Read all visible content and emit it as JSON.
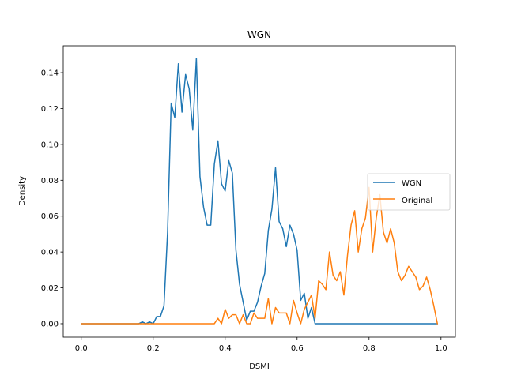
{
  "chart_data": {
    "type": "line",
    "title": "WGN",
    "xlabel": "DSMI",
    "ylabel": "Density",
    "xlim": [
      -0.05,
      1.04
    ],
    "ylim": [
      -0.0075,
      0.155
    ],
    "xticks": [
      0.0,
      0.2,
      0.4,
      0.6,
      0.8,
      1.0
    ],
    "xtick_labels": [
      "0.0",
      "0.2",
      "0.4",
      "0.6",
      "0.8",
      "1.0"
    ],
    "yticks": [
      0.0,
      0.02,
      0.04,
      0.06,
      0.08,
      0.1,
      0.12,
      0.14
    ],
    "ytick_labels": [
      "0.00",
      "0.02",
      "0.04",
      "0.06",
      "0.08",
      "0.10",
      "0.12",
      "0.14"
    ],
    "grid": false,
    "legend_position": "center-right",
    "series": [
      {
        "name": "WGN",
        "color": "#1f77b4",
        "x": [
          0.0,
          0.16,
          0.17,
          0.18,
          0.19,
          0.2,
          0.21,
          0.22,
          0.23,
          0.24,
          0.25,
          0.26,
          0.27,
          0.28,
          0.29,
          0.3,
          0.31,
          0.32,
          0.33,
          0.34,
          0.35,
          0.36,
          0.37,
          0.38,
          0.39,
          0.4,
          0.41,
          0.42,
          0.43,
          0.44,
          0.45,
          0.46,
          0.47,
          0.48,
          0.49,
          0.5,
          0.51,
          0.52,
          0.53,
          0.54,
          0.55,
          0.56,
          0.57,
          0.58,
          0.59,
          0.6,
          0.61,
          0.62,
          0.63,
          0.64,
          0.65,
          0.66,
          0.67,
          0.99
        ],
        "y": [
          0.0,
          0.0,
          0.001,
          0.0,
          0.001,
          0.0,
          0.004,
          0.004,
          0.01,
          0.051,
          0.123,
          0.115,
          0.145,
          0.118,
          0.139,
          0.131,
          0.108,
          0.148,
          0.082,
          0.065,
          0.055,
          0.055,
          0.089,
          0.102,
          0.078,
          0.074,
          0.091,
          0.084,
          0.041,
          0.022,
          0.012,
          0.002,
          0.007,
          0.007,
          0.012,
          0.021,
          0.028,
          0.052,
          0.064,
          0.087,
          0.057,
          0.053,
          0.043,
          0.055,
          0.05,
          0.041,
          0.013,
          0.017,
          0.003,
          0.009,
          0.0,
          0.0,
          0.0,
          0.0
        ]
      },
      {
        "name": "Original",
        "color": "#ff7f0e",
        "x": [
          0.0,
          0.37,
          0.38,
          0.39,
          0.4,
          0.41,
          0.42,
          0.43,
          0.44,
          0.45,
          0.46,
          0.47,
          0.48,
          0.49,
          0.5,
          0.51,
          0.52,
          0.53,
          0.54,
          0.55,
          0.56,
          0.57,
          0.58,
          0.59,
          0.6,
          0.61,
          0.62,
          0.63,
          0.64,
          0.65,
          0.66,
          0.67,
          0.68,
          0.69,
          0.7,
          0.71,
          0.72,
          0.73,
          0.74,
          0.75,
          0.76,
          0.77,
          0.78,
          0.79,
          0.8,
          0.81,
          0.82,
          0.83,
          0.84,
          0.85,
          0.86,
          0.87,
          0.88,
          0.89,
          0.9,
          0.91,
          0.92,
          0.93,
          0.94,
          0.95,
          0.96,
          0.97,
          0.98,
          0.99
        ],
        "y": [
          0.0,
          0.0,
          0.003,
          0.0,
          0.008,
          0.003,
          0.005,
          0.005,
          0.0,
          0.005,
          0.0,
          0.0,
          0.006,
          0.003,
          0.003,
          0.003,
          0.014,
          0.0,
          0.009,
          0.006,
          0.006,
          0.006,
          0.0,
          0.013,
          0.006,
          0.0,
          0.008,
          0.012,
          0.016,
          0.003,
          0.024,
          0.022,
          0.019,
          0.04,
          0.027,
          0.024,
          0.029,
          0.016,
          0.038,
          0.055,
          0.063,
          0.04,
          0.053,
          0.059,
          0.076,
          0.04,
          0.059,
          0.072,
          0.051,
          0.045,
          0.053,
          0.045,
          0.029,
          0.024,
          0.027,
          0.032,
          0.029,
          0.026,
          0.019,
          0.021,
          0.026,
          0.019,
          0.01,
          0.0
        ]
      }
    ]
  }
}
